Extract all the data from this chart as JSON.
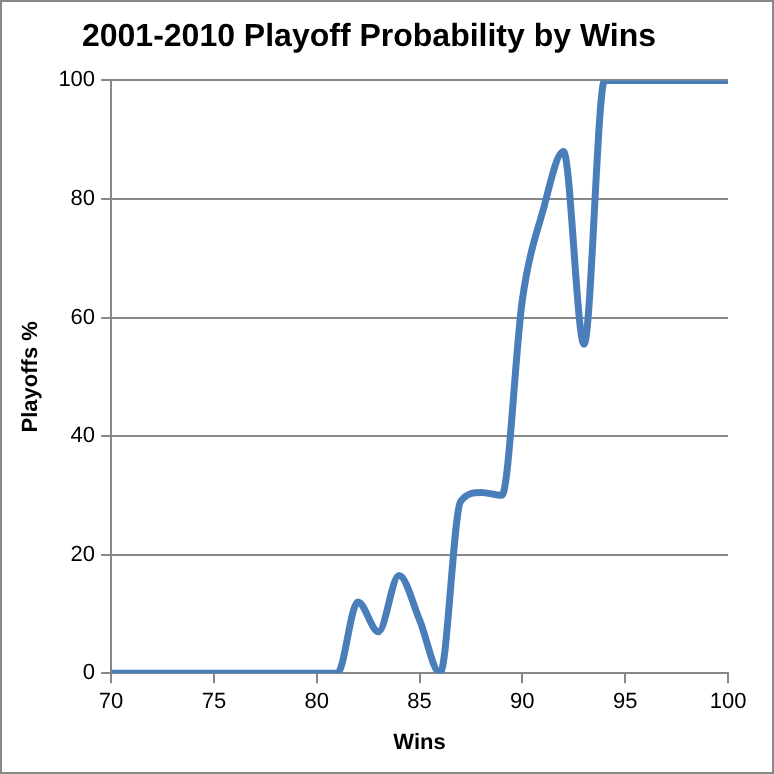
{
  "chart_data": {
    "type": "line",
    "title": "2001-2010 Playoff Probability by Wins",
    "xlabel": "Wins",
    "ylabel": "Playoffs %",
    "x": [
      70,
      71,
      72,
      73,
      74,
      75,
      76,
      77,
      78,
      79,
      80,
      81,
      82,
      83,
      84,
      85,
      86,
      87,
      88,
      89,
      90,
      91,
      92,
      93,
      94,
      95,
      96,
      97,
      98,
      99,
      100
    ],
    "series": [
      {
        "color": "#4a7ebb",
        "values": [
          0,
          0,
          0,
          0,
          0,
          0,
          0,
          0,
          0,
          0,
          0,
          0,
          12,
          7,
          16.5,
          9,
          0,
          29,
          30.5,
          30,
          63,
          78,
          88,
          55.5,
          100,
          100,
          100,
          100,
          100,
          100,
          100
        ]
      }
    ],
    "xlim": [
      70,
      100
    ],
    "xticks": [
      70,
      75,
      80,
      85,
      90,
      95,
      100
    ],
    "ylim": [
      0,
      100
    ],
    "yticks": [
      0,
      20,
      40,
      60,
      80,
      100
    ],
    "grid": "y",
    "legend": false,
    "marker": "none",
    "line_style": "solid"
  }
}
